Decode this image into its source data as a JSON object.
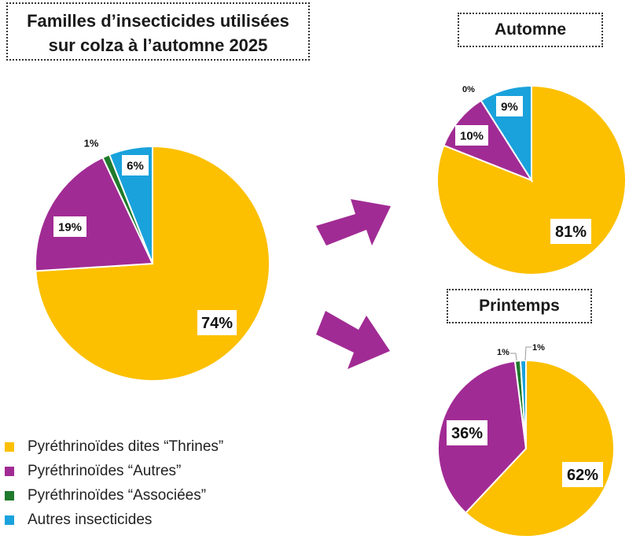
{
  "title_lines": [
    "Familles d’insecticides utilisées",
    "sur colza à l’automne 2025"
  ],
  "colors": {
    "thrines": "#fcc000",
    "autres_pyr": "#a12b94",
    "associees": "#1f7a2c",
    "autres_ins": "#1aa2dc"
  },
  "legend": [
    {
      "label": "Pyréthrinoïdes dites “Thrines”",
      "color": "#fcc000"
    },
    {
      "label": "Pyréthrinoïdes “Autres”",
      "color": "#a12b94"
    },
    {
      "label": "Pyréthrinoïdes “Associées”",
      "color": "#1f7a2c"
    },
    {
      "label": "Autres insecticides",
      "color": "#1aa2dc"
    }
  ],
  "chart_data": [
    {
      "type": "pie",
      "title": "",
      "slices": [
        {
          "name": "Pyréthrinoïdes dites “Thrines”",
          "value": 74,
          "label": "74%",
          "color": "#fcc000"
        },
        {
          "name": "Pyréthrinoïdes “Autres”",
          "value": 19,
          "label": "19%",
          "color": "#a12b94"
        },
        {
          "name": "Pyréthrinoïdes “Associées”",
          "value": 1,
          "label": "1%",
          "color": "#1f7a2c"
        },
        {
          "name": "Autres insecticides",
          "value": 6,
          "label": "6%",
          "color": "#1aa2dc"
        }
      ]
    },
    {
      "type": "pie",
      "title": "Automne",
      "slices": [
        {
          "name": "Pyréthrinoïdes dites “Thrines”",
          "value": 81,
          "label": "81%",
          "color": "#fcc000"
        },
        {
          "name": "Pyréthrinoïdes “Autres”",
          "value": 10,
          "label": "10%",
          "color": "#a12b94"
        },
        {
          "name": "Pyréthrinoïdes “Associées”",
          "value": 0,
          "label": "0%",
          "color": "#1f7a2c"
        },
        {
          "name": "Autres insecticides",
          "value": 9,
          "label": "9%",
          "color": "#1aa2dc"
        }
      ]
    },
    {
      "type": "pie",
      "title": "Printemps",
      "slices": [
        {
          "name": "Pyréthrinoïdes dites “Thrines”",
          "value": 62,
          "label": "62%",
          "color": "#fcc000"
        },
        {
          "name": "Pyréthrinoïdes “Autres”",
          "value": 36,
          "label": "36%",
          "color": "#a12b94"
        },
        {
          "name": "Pyréthrinoïdes “Associées”",
          "value": 1,
          "label": "1%",
          "color": "#1f7a2c"
        },
        {
          "name": "Autres insecticides",
          "value": 1,
          "label": "1%",
          "color": "#1aa2dc"
        }
      ]
    }
  ]
}
